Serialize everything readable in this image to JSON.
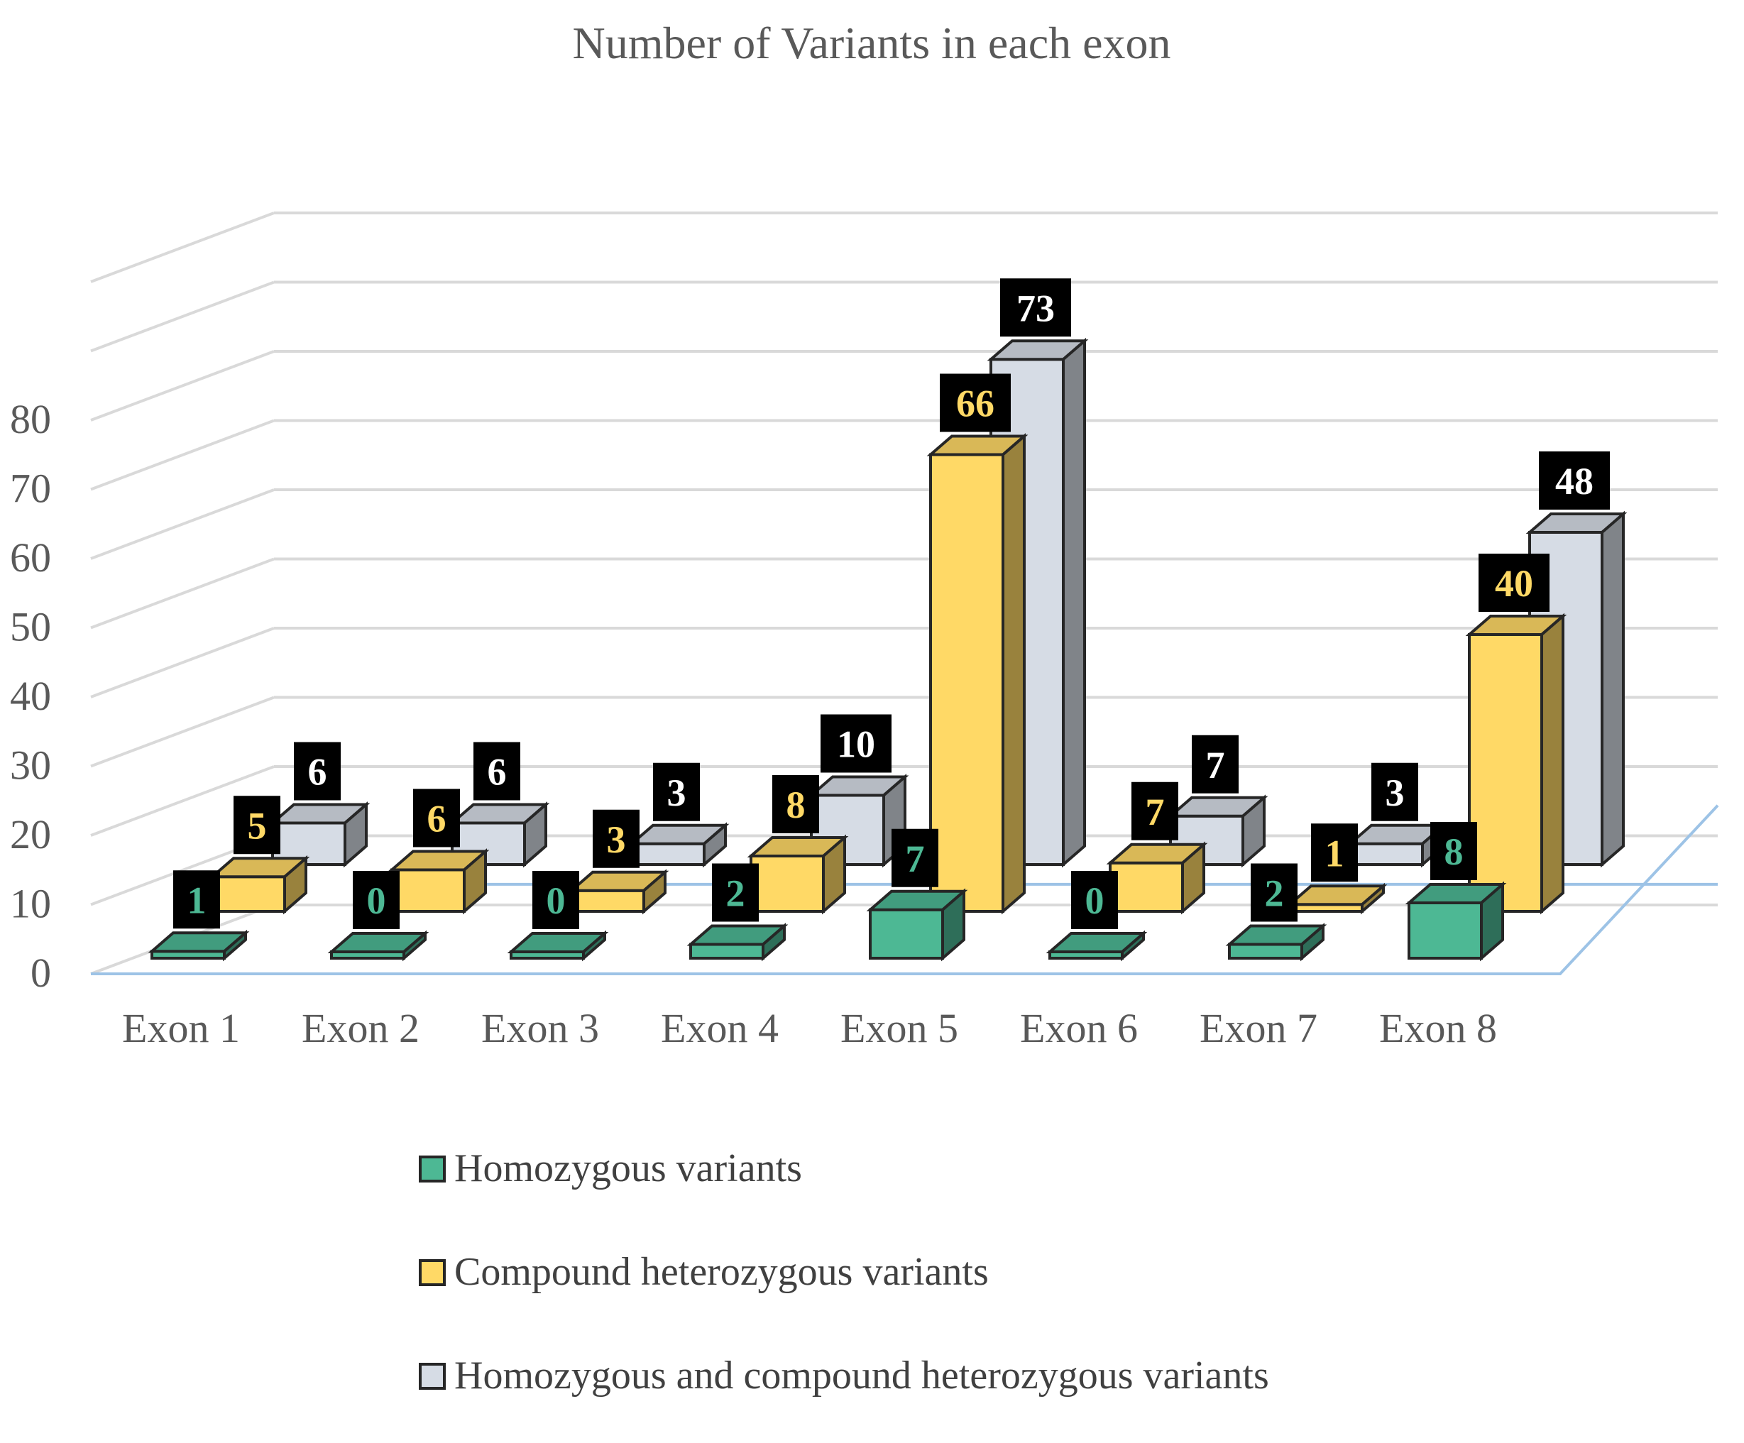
{
  "chart_data": {
    "type": "bar",
    "title": "Number of Variants in each exon",
    "categories": [
      "Exon 1",
      "Exon 2",
      "Exon 3",
      "Exon 4",
      "Exon 5",
      "Exon 6",
      "Exon 7",
      "Exon 8"
    ],
    "series": [
      {
        "name": "Homozygous variants",
        "values": [
          1,
          0,
          0,
          2,
          7,
          0,
          2,
          8
        ],
        "color": "#4db894",
        "label_color": "#4db894"
      },
      {
        "name": "Compound heterozygous variants",
        "values": [
          5,
          6,
          3,
          8,
          66,
          7,
          1,
          40
        ],
        "color": "#ffd966",
        "label_color": "#ffd966"
      },
      {
        "name": "Homozygous and compound heterozygous variants",
        "values": [
          6,
          6,
          3,
          10,
          73,
          7,
          3,
          48
        ],
        "color": "#d6dce5",
        "label_color": "#ffffff"
      }
    ],
    "yticks": [
      0,
      10,
      20,
      30,
      40,
      50,
      60,
      70,
      80
    ],
    "xlabel": "",
    "ylabel": "",
    "grid": true,
    "legend": "bottom"
  }
}
